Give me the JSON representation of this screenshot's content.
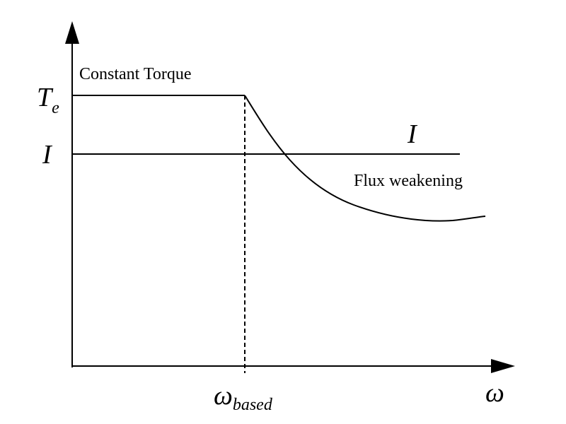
{
  "labels": {
    "constant_torque": "Constant Torque",
    "torque_axis": {
      "symbol": "T",
      "subscript": "e"
    },
    "current_axis": "I",
    "current_curve": "I",
    "flux_weakening": "Flux weakening",
    "base_speed": {
      "symbol": "ω",
      "subscript": "based"
    },
    "speed_axis": "ω"
  }
}
